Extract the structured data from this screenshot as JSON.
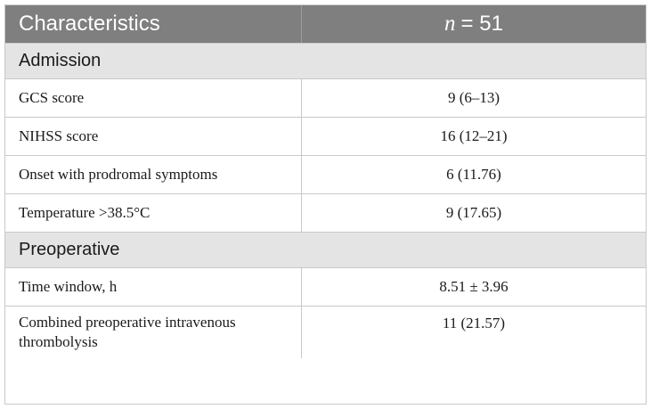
{
  "table": {
    "header": {
      "col1": "Characteristics",
      "n_symbol": "n",
      "n_value": "= 51"
    },
    "sections": [
      {
        "title": "Admission",
        "rows": [
          {
            "label": "GCS score",
            "value": "9 (6–13)"
          },
          {
            "label": "NIHSS score",
            "value": "16 (12–21)"
          },
          {
            "label": "Onset with prodromal symptoms",
            "value": "6 (11.76)"
          },
          {
            "label": "Temperature >38.5°C",
            "value": "9 (17.65)"
          }
        ]
      },
      {
        "title": "Preoperative",
        "rows": [
          {
            "label": "Time window, h",
            "value": "8.51 ± 3.96"
          },
          {
            "label": "Combined preoperative intravenous thrombolysis",
            "label_line1": "Combined preoperative",
            "label_line2": "intravenous thrombolysis",
            "value": "11 (21.57)"
          }
        ]
      }
    ]
  }
}
